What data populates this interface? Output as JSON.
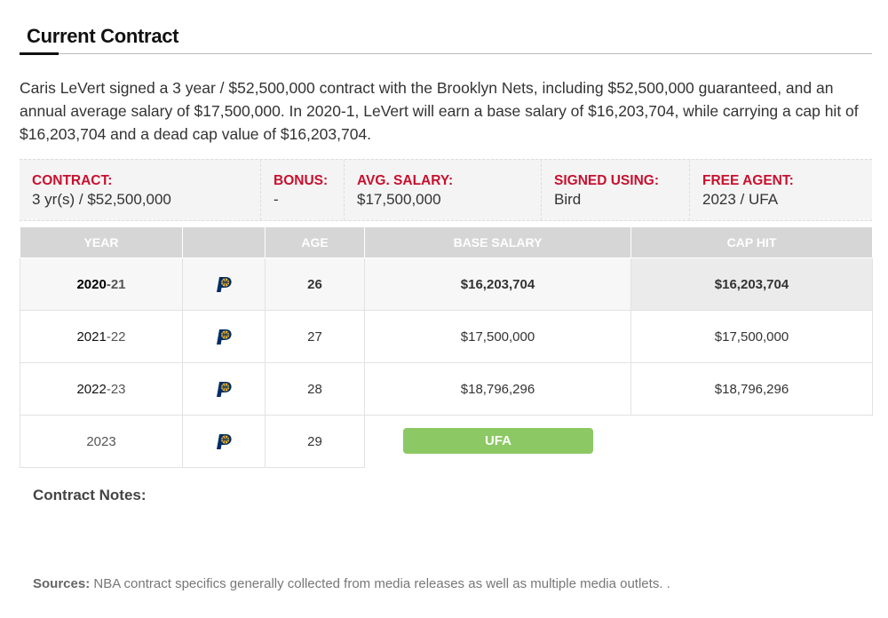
{
  "section": {
    "title": "Current Contract"
  },
  "intro": "Caris LeVert signed a 3 year / $52,500,000 contract with the Brooklyn Nets, including $52,500,000 guaranteed, and an annual average salary of $17,500,000. In 2020-1, LeVert will earn a base salary of $16,203,704, while carrying a cap hit of $16,203,704 and a dead cap value of $16,203,704.",
  "summary": {
    "contract": {
      "label": "CONTRACT:",
      "value": "3 yr(s) / $52,500,000"
    },
    "bonus": {
      "label": "BONUS:",
      "value": "-"
    },
    "avg_salary": {
      "label": "AVG. SALARY:",
      "value": "$17,500,000"
    },
    "signed_using": {
      "label": "SIGNED USING:",
      "value": "Bird"
    },
    "free_agent": {
      "label": "FREE AGENT:",
      "value": "2023 / UFA"
    }
  },
  "table": {
    "headers": {
      "year": "YEAR",
      "team": "",
      "age": "AGE",
      "base_salary": "BASE SALARY",
      "cap_hit": "CAP HIT"
    },
    "rows": [
      {
        "year_start": "2020",
        "year_end": "-21",
        "team_icon": "pacers-logo-icon",
        "age": "26",
        "base_salary": "$16,203,704",
        "cap_hit": "$16,203,704"
      },
      {
        "year_start": "2021",
        "year_end": "-22",
        "team_icon": "pacers-logo-icon",
        "age": "27",
        "base_salary": "$17,500,000",
        "cap_hit": "$17,500,000"
      },
      {
        "year_start": "2022",
        "year_end": "-23",
        "team_icon": "pacers-logo-icon",
        "age": "28",
        "base_salary": "$18,796,296",
        "cap_hit": "$18,796,296"
      },
      {
        "year_start": "2023",
        "year_end": "",
        "team_icon": "pacers-logo-icon",
        "age": "29",
        "status": "UFA"
      }
    ]
  },
  "notes": {
    "label": "Contract Notes:"
  },
  "sources": {
    "label": "Sources:",
    "text": " NBA contract specifics generally collected from media releases as well as multiple media outlets. ."
  },
  "colors": {
    "label_red": "#c8102e",
    "ufa_green": "#8cc863",
    "header_gray": "#d6d6d6",
    "pacers_navy": "#002d62",
    "pacers_gold": "#fdbb30"
  }
}
